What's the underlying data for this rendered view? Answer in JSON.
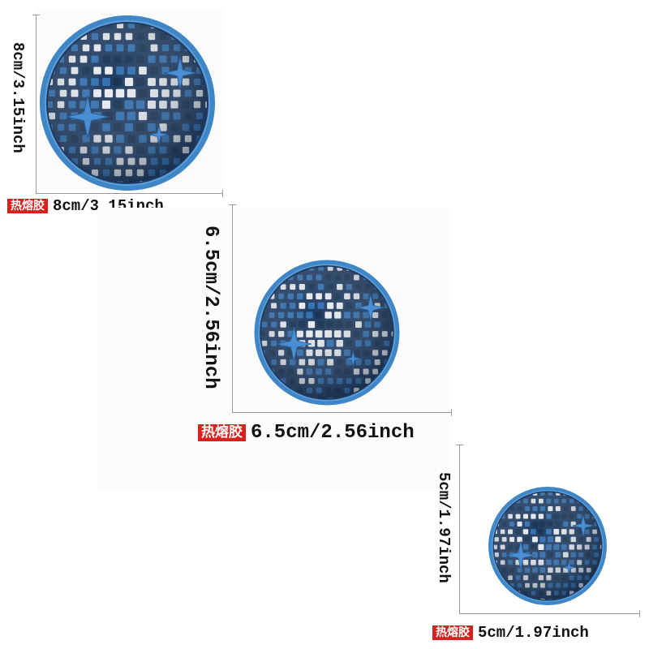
{
  "tag_text": "热熔胶",
  "colors": {
    "tag_bg": "#d9201c",
    "patch_edge": "#3f86c7",
    "patch_dark": "#1e3a60",
    "patch_tile": "#2f6fb0",
    "patch_light": "#e8ecef"
  },
  "patches": [
    {
      "label": "8cm/3.15inch",
      "vertical_label": "8cm/3.15inch"
    },
    {
      "label": "6.5cm/2.56inch",
      "vertical_label": "6.5cm/2.56inch"
    },
    {
      "label": "5cm/1.97inch",
      "vertical_label": "5cm/1.97inch"
    }
  ]
}
